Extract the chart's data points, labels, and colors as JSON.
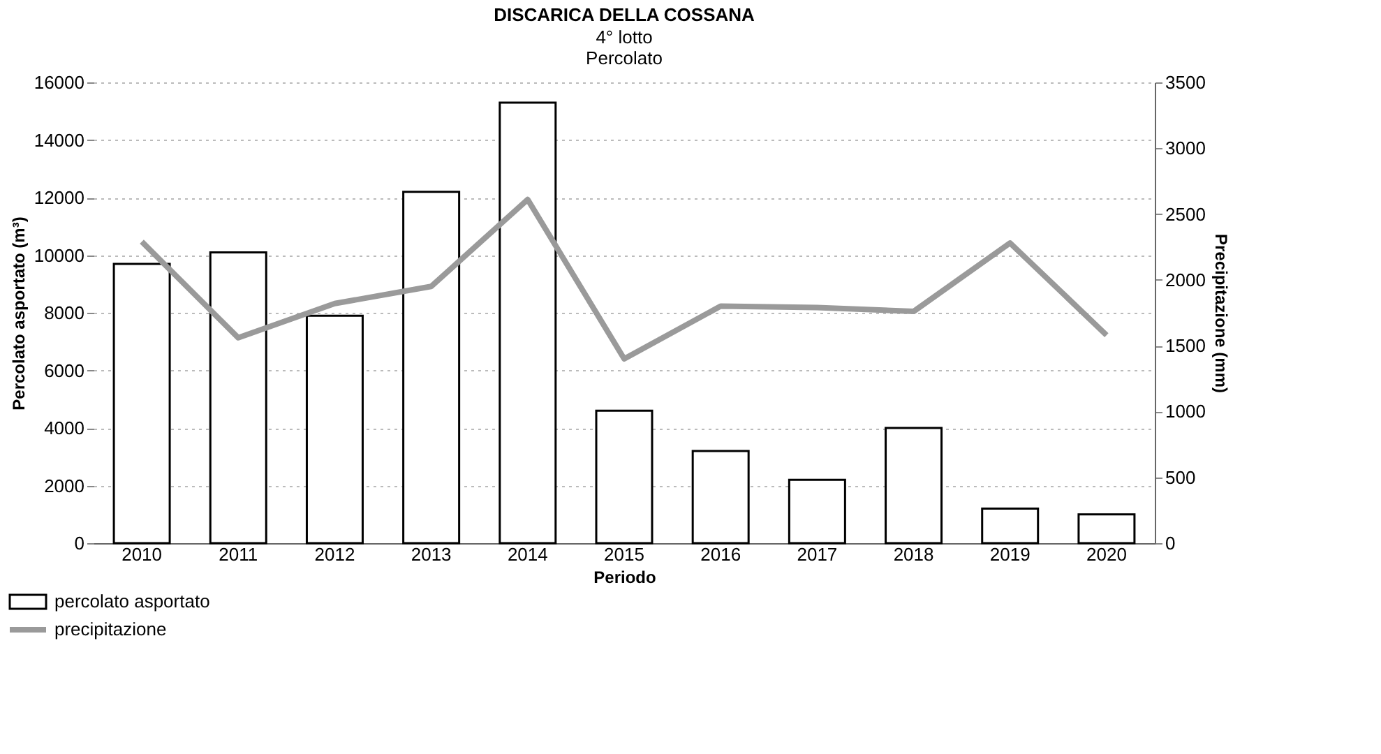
{
  "chart_data": {
    "type": "bar",
    "title": "DISCARICA DELLA COSSANA",
    "subtitle": "4° lotto\nPercolato",
    "xlabel": "Periodo",
    "ylabel": "Percolato asportato (m³)",
    "y2label": "Precipitazione (mm)",
    "categories": [
      "2010",
      "2011",
      "2012",
      "2013",
      "2014",
      "2015",
      "2016",
      "2017",
      "2018",
      "2019",
      "2020"
    ],
    "series": [
      {
        "name": "percolato asportato",
        "type": "bar",
        "color": "#ffffff",
        "values": [
          9700,
          10100,
          7900,
          12200,
          15300,
          4600,
          3200,
          2200,
          4000,
          1200,
          1000
        ]
      },
      {
        "name": "precipitazione",
        "type": "line",
        "axis": "y2",
        "color": "#9a9a9a",
        "values": [
          2290,
          1560,
          1820,
          1950,
          2610,
          1400,
          1800,
          1790,
          1760,
          2280,
          1580
        ]
      }
    ],
    "ylim": [
      0,
      16000
    ],
    "yticks": [
      0,
      2000,
      4000,
      6000,
      8000,
      10000,
      12000,
      14000,
      16000
    ],
    "y2lim": [
      0,
      3500
    ],
    "y2ticks": [
      0,
      500,
      1000,
      1500,
      2000,
      2500,
      3000,
      3500
    ],
    "grid": "y",
    "legend": "bottom left"
  }
}
